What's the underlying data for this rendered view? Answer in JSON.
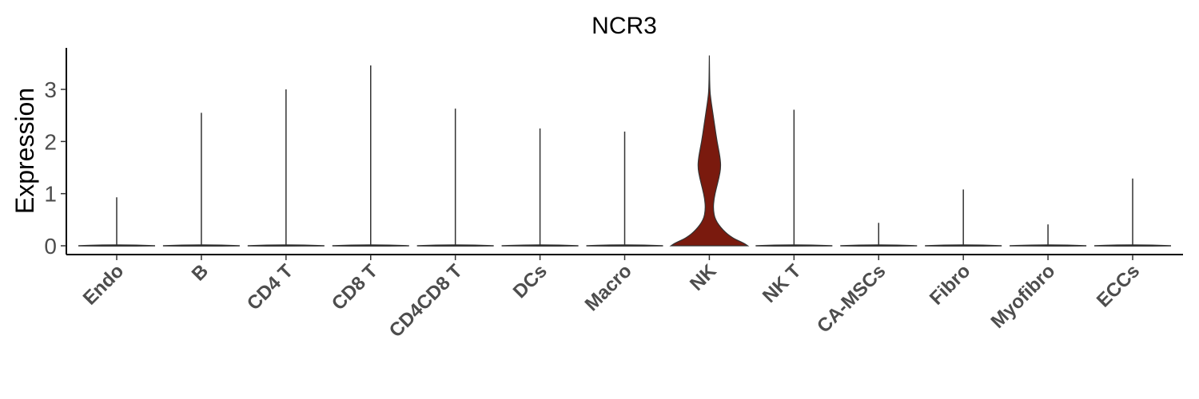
{
  "chart_data": {
    "type": "violin",
    "title": "NCR3",
    "xlabel": "",
    "ylabel": "Expression",
    "ylim": [
      -0.2,
      3.85
    ],
    "yticks": [
      0,
      1,
      2,
      3
    ],
    "grid": false,
    "legend": "none",
    "categories": [
      "Endo",
      "B",
      "CD4 T",
      "CD8 T",
      "CD4CD8 T",
      "DCs",
      "Macro",
      "NK",
      "NK T",
      "CA-MSCs",
      "Fibro",
      "Myofibro",
      "ECCs"
    ],
    "max_values": [
      0.93,
      2.55,
      3.0,
      3.46,
      2.63,
      2.25,
      2.19,
      3.65,
      2.61,
      0.44,
      1.08,
      0.41,
      1.29
    ],
    "fill_color": "#7a1a0e",
    "nk_density_profile": [
      {
        "y": 0.0,
        "w": 1.0
      },
      {
        "y": 0.05,
        "w": 0.9
      },
      {
        "y": 0.15,
        "w": 0.6
      },
      {
        "y": 0.3,
        "w": 0.35
      },
      {
        "y": 0.5,
        "w": 0.15
      },
      {
        "y": 0.7,
        "w": 0.1
      },
      {
        "y": 0.9,
        "w": 0.12
      },
      {
        "y": 1.1,
        "w": 0.18
      },
      {
        "y": 1.3,
        "w": 0.25
      },
      {
        "y": 1.5,
        "w": 0.3
      },
      {
        "y": 1.7,
        "w": 0.28
      },
      {
        "y": 2.0,
        "w": 0.2
      },
      {
        "y": 2.3,
        "w": 0.14
      },
      {
        "y": 2.6,
        "w": 0.08
      },
      {
        "y": 2.8,
        "w": 0.04
      },
      {
        "y": 3.0,
        "w": 0.01
      },
      {
        "y": 3.65,
        "w": 0.0
      }
    ]
  }
}
